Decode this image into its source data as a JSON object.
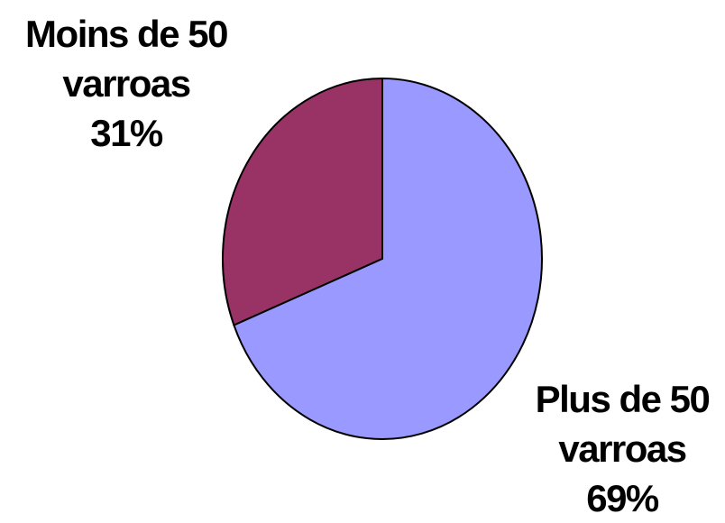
{
  "chart_data": {
    "type": "pie",
    "categories": [
      "Moins de 50 varroas",
      "Plus de 50 varroas"
    ],
    "values": [
      31,
      69
    ],
    "value_labels": [
      "31%",
      "69%"
    ],
    "colors": [
      "#993366",
      "#9999ff"
    ]
  }
}
